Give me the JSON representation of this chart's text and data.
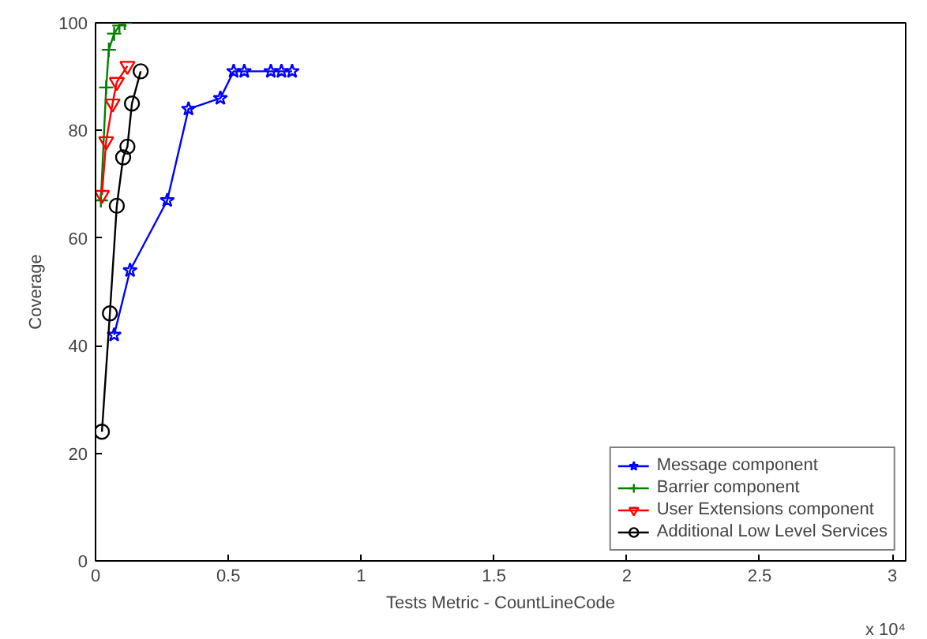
{
  "chart_data": {
    "type": "line",
    "xlabel": "Tests Metric - CountLineCode",
    "ylabel": "Coverage",
    "xlim": [
      0,
      3.05
    ],
    "ylim": [
      0,
      100
    ],
    "xticks": [
      0,
      0.5,
      1,
      1.5,
      2,
      2.5,
      3
    ],
    "yticks": [
      0,
      20,
      40,
      60,
      80,
      100
    ],
    "annotations": [
      "x 10⁴"
    ],
    "grid": false,
    "legend": "bottom right",
    "line_style": "solid",
    "series": [
      {
        "name": "Message component",
        "color": "#0000ff",
        "marker": "star",
        "x": [
          0.07,
          0.13,
          0.27,
          0.35,
          0.47,
          0.52,
          0.56,
          0.66,
          0.7,
          0.74
        ],
        "values": [
          42,
          54,
          67,
          84,
          86,
          91,
          91,
          91,
          91,
          91
        ]
      },
      {
        "name": "Barrier component",
        "color": "#008000",
        "marker": "cross",
        "x": [
          0.02,
          0.04,
          0.05,
          0.07,
          0.09,
          0.11
        ],
        "values": [
          67,
          88,
          95,
          98,
          99.5,
          100
        ]
      },
      {
        "name": "User Extensions component",
        "color": "#ff0000",
        "marker": "triangle",
        "x": [
          0.024,
          0.04,
          0.064,
          0.08,
          0.12
        ],
        "values": [
          68,
          78,
          85,
          89,
          92
        ]
      },
      {
        "name": "Additional Low Level Services",
        "color": "#000000",
        "marker": "circle",
        "x": [
          0.024,
          0.054,
          0.08,
          0.104,
          0.12,
          0.137,
          0.17
        ],
        "values": [
          24,
          46,
          66,
          75,
          77,
          85,
          91
        ]
      }
    ]
  }
}
